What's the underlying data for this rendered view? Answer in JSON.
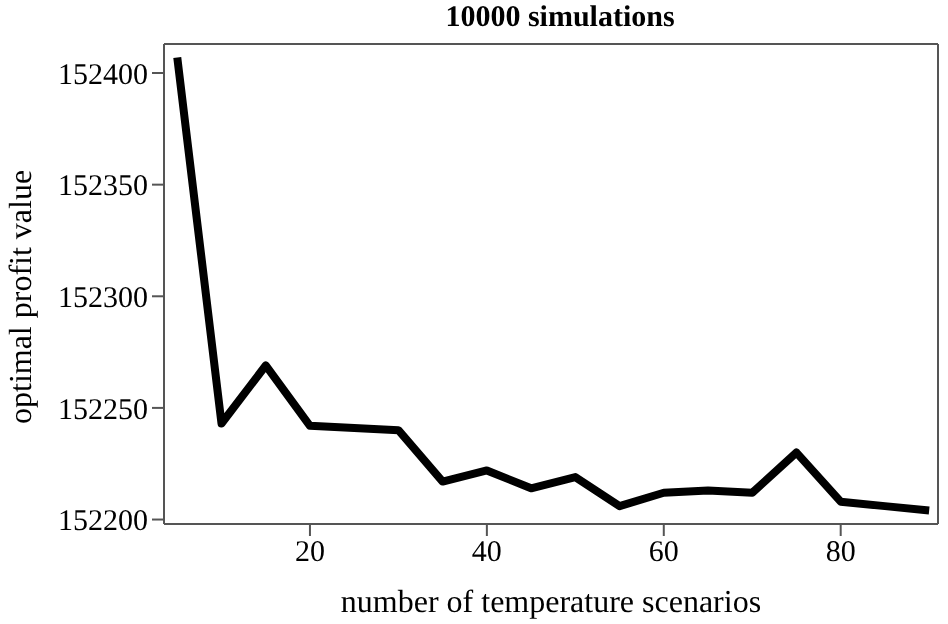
{
  "chart_data": {
    "type": "line",
    "title": "10000 simulations",
    "xlabel": "number of temperature scenarios",
    "ylabel": "optimal profit value",
    "x": [
      5,
      10,
      15,
      20,
      25,
      30,
      35,
      40,
      45,
      50,
      55,
      60,
      65,
      70,
      75,
      80,
      85,
      90
    ],
    "series": [
      {
        "color": "#000000",
        "values": [
          152407,
          152243,
          152269,
          152242,
          152241,
          152240,
          152217,
          152222,
          152214,
          152219,
          152206,
          152212,
          152213,
          152212,
          152230,
          152208,
          152206,
          152204
        ]
      }
    ],
    "xlim": [
      3.5,
      91
    ],
    "xticks": [
      20,
      40,
      60,
      80
    ],
    "ylim": [
      152198,
      152413
    ],
    "yticks": [
      152200,
      152250,
      152300,
      152350,
      152400
    ],
    "marker": "none",
    "line_style": "solid"
  }
}
